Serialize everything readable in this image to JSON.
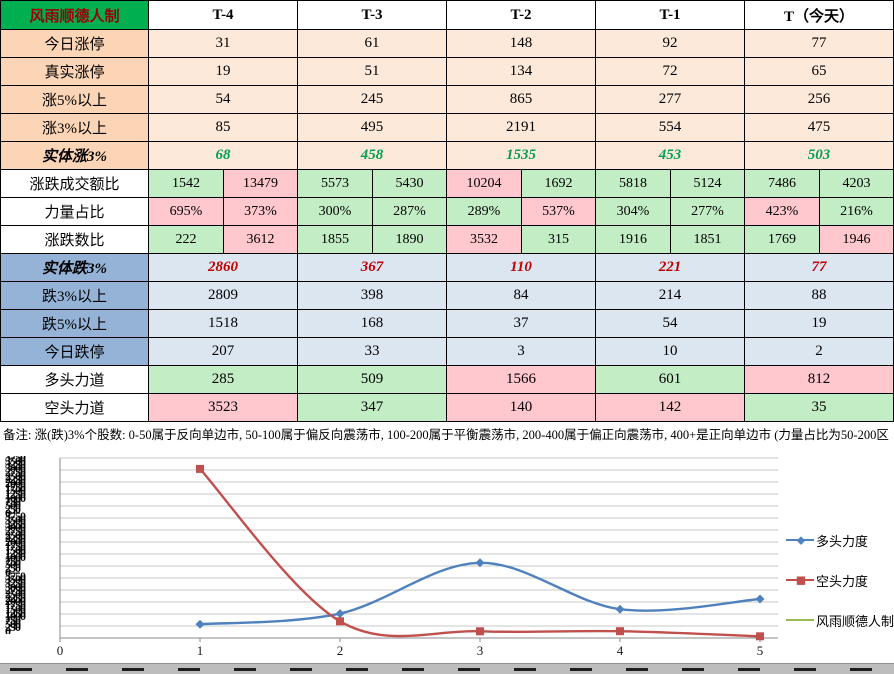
{
  "colors": {
    "title_bg": "#00B050",
    "title_text": "#9C0006",
    "up_label_bg": "#FBD5B5",
    "up_cell_bg": "#FDE9D9",
    "down_label_bg": "#95B3D7",
    "down_cell_bg": "#DCE6F1",
    "green_cell": "#C3EDC4",
    "pink_cell": "#FFC7CE",
    "up_em_text": "#00A050",
    "down_em_text": "#C00000"
  },
  "table": {
    "title": "风雨顺德人制",
    "columns": [
      "T-4",
      "T-3",
      "T-2",
      "T-1",
      "T（今天）"
    ],
    "rows": [
      {
        "style": "up",
        "label": "今日涨停",
        "cells": [
          "31",
          "61",
          "148",
          "92",
          "77"
        ]
      },
      {
        "style": "up",
        "label": "真实涨停",
        "cells": [
          "19",
          "51",
          "134",
          "72",
          "65"
        ]
      },
      {
        "style": "up",
        "label": "涨5%以上",
        "cells": [
          "54",
          "245",
          "865",
          "277",
          "256"
        ]
      },
      {
        "style": "up",
        "label": "涨3%以上",
        "cells": [
          "85",
          "495",
          "2191",
          "554",
          "475"
        ]
      },
      {
        "style": "up-em",
        "label": "实体涨3%",
        "cells": [
          "68",
          "458",
          "1535",
          "453",
          "503"
        ]
      },
      {
        "style": "pair",
        "label": "涨跌成交额比",
        "pairs": [
          [
            "1542",
            "g",
            "13479",
            "p"
          ],
          [
            "5573",
            "g",
            "5430",
            "g"
          ],
          [
            "10204",
            "p",
            "1692",
            "g"
          ],
          [
            "5818",
            "g",
            "5124",
            "g"
          ],
          [
            "7486",
            "g",
            "4203",
            "g"
          ]
        ]
      },
      {
        "style": "pair",
        "label": "力量占比",
        "pairs": [
          [
            "695%",
            "p",
            "373%",
            "p"
          ],
          [
            "300%",
            "g",
            "287%",
            "g"
          ],
          [
            "289%",
            "g",
            "537%",
            "p"
          ],
          [
            "304%",
            "g",
            "277%",
            "g"
          ],
          [
            "423%",
            "p",
            "216%",
            "g"
          ]
        ]
      },
      {
        "style": "pair",
        "label": "涨跌数比",
        "pairs": [
          [
            "222",
            "g",
            "3612",
            "p"
          ],
          [
            "1855",
            "g",
            "1890",
            "g"
          ],
          [
            "3532",
            "p",
            "315",
            "g"
          ],
          [
            "1916",
            "g",
            "1851",
            "g"
          ],
          [
            "1769",
            "g",
            "1946",
            "p"
          ]
        ]
      },
      {
        "style": "down-em",
        "label": "实体跌3%",
        "cells": [
          "2860",
          "367",
          "110",
          "221",
          "77"
        ]
      },
      {
        "style": "down",
        "label": "跌3%以上",
        "cells": [
          "2809",
          "398",
          "84",
          "214",
          "88"
        ]
      },
      {
        "style": "down",
        "label": "跌5%以上",
        "cells": [
          "1518",
          "168",
          "37",
          "54",
          "19"
        ]
      },
      {
        "style": "down",
        "label": "今日跌停",
        "cells": [
          "207",
          "33",
          "3",
          "10",
          "2"
        ]
      },
      {
        "style": "force",
        "label": "多头力道",
        "cells": [
          [
            "285",
            "g"
          ],
          [
            "509",
            "g"
          ],
          [
            "1566",
            "p"
          ],
          [
            "601",
            "g"
          ],
          [
            "812",
            "p"
          ]
        ]
      },
      {
        "style": "force",
        "label": "空头力道",
        "cells": [
          [
            "3523",
            "p"
          ],
          [
            "347",
            "g"
          ],
          [
            "140",
            "p"
          ],
          [
            "142",
            "p"
          ],
          [
            "35",
            "g"
          ]
        ]
      }
    ]
  },
  "note": "备注: 涨(跌)3%个股数: 0-50属于反向单边市, 50-100属于偏反向震荡市, 100-200属于平衡震荡市, 200-400属于偏正向震荡市, 400+是正向单边市 (力量占比为50-200区",
  "chart_data": {
    "type": "line",
    "x": [
      1,
      2,
      3,
      4,
      5
    ],
    "x_ticks": [
      "0",
      "1",
      "2",
      "3",
      "4",
      "5"
    ],
    "series": [
      {
        "name": "多头力度",
        "color": "#4F81BD",
        "marker": "diamond",
        "values": [
          285,
          509,
          1566,
          601,
          812
        ]
      },
      {
        "name": "空头力度",
        "color": "#C0504D",
        "marker": "square",
        "values": [
          3523,
          347,
          140,
          142,
          35
        ]
      },
      {
        "name": "风雨顺德人制",
        "color": "#9BBB59",
        "marker": "none",
        "values": []
      }
    ],
    "title": "",
    "xlabel": "",
    "ylabel": "",
    "ylim": [
      0,
      3750
    ],
    "y_step": 250,
    "grid": true,
    "legend_position": "right",
    "y_axis_labels_overlapped": true
  }
}
